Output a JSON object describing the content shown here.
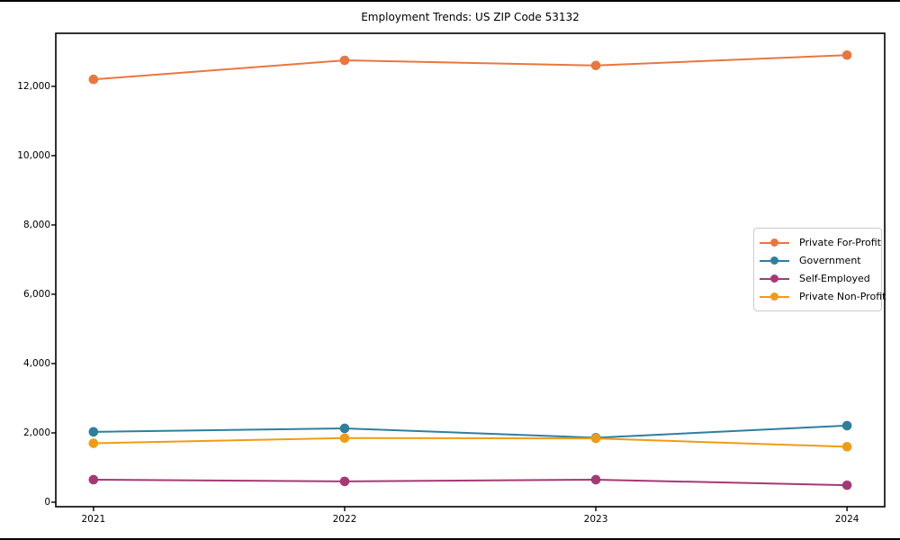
{
  "chart_data": {
    "type": "line",
    "title": "Employment Trends: US ZIP Code 53132",
    "xlabel": "",
    "ylabel": "",
    "categories": [
      2021,
      2022,
      2023,
      2024
    ],
    "x_tick_labels": [
      "2021",
      "2022",
      "2023",
      "2024"
    ],
    "y_ticks": [
      0,
      2000,
      4000,
      6000,
      8000,
      10000,
      12000
    ],
    "y_tick_labels": [
      "0",
      "2,000",
      "4,000",
      "6,000",
      "8,000",
      "10,000",
      "12,000"
    ],
    "xlim": [
      2020.85,
      2024.15
    ],
    "ylim": [
      -130,
      13530
    ],
    "grid": false,
    "axis_color": "#000000",
    "legend": {
      "position": "center-right",
      "border_color": "#cccccc",
      "background": "#ffffff"
    },
    "series": [
      {
        "name": "Private For-Profit",
        "color": "#e8773f",
        "values": [
          12200,
          12750,
          12600,
          12900
        ]
      },
      {
        "name": "Government",
        "color": "#2e7f9e",
        "values": [
          2030,
          2130,
          1860,
          2210
        ]
      },
      {
        "name": "Self-Employed",
        "color": "#a43a74",
        "values": [
          650,
          600,
          650,
          490
        ]
      },
      {
        "name": "Private Non-Profit",
        "color": "#f09c13",
        "values": [
          1700,
          1850,
          1840,
          1600
        ]
      }
    ]
  }
}
